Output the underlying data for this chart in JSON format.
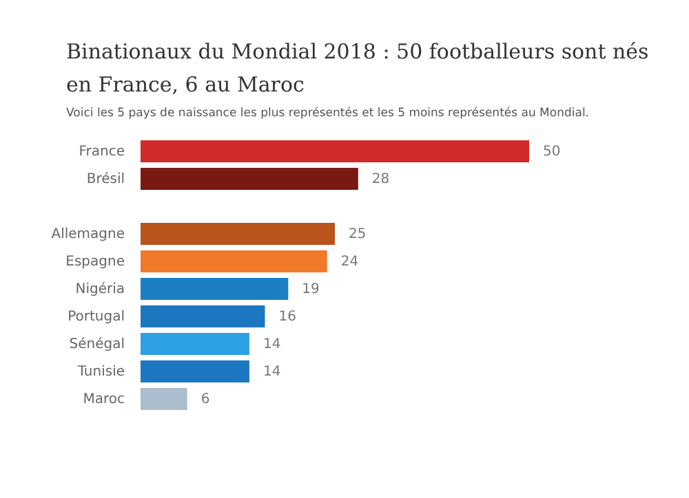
{
  "chart_data": {
    "type": "bar",
    "orientation": "horizontal",
    "title": "Binationaux du Mondial 2018 : 50 footballeurs sont nés\nen France, 6 au Maroc",
    "subtitle": "Voici les 5 pays de naissance les plus représentés et les 5 moins représentés au Mondial.",
    "categories": [
      "France",
      "Brésil",
      null,
      "Allemagne",
      "Espagne",
      "Nigéria",
      "Portugal",
      "Sénégal",
      "Tunisie",
      "Maroc"
    ],
    "values": [
      50,
      28,
      null,
      25,
      24,
      19,
      16,
      14,
      14,
      6
    ],
    "colors": [
      "#d22b2b",
      "#7a1812",
      "#c2501f",
      "#b8541c",
      "#f07a2a",
      "#1b7fc4",
      "#1b78c0",
      "#2ca0e2",
      "#1b78c0",
      "#a9bdcc"
    ],
    "data_labels": true
  }
}
